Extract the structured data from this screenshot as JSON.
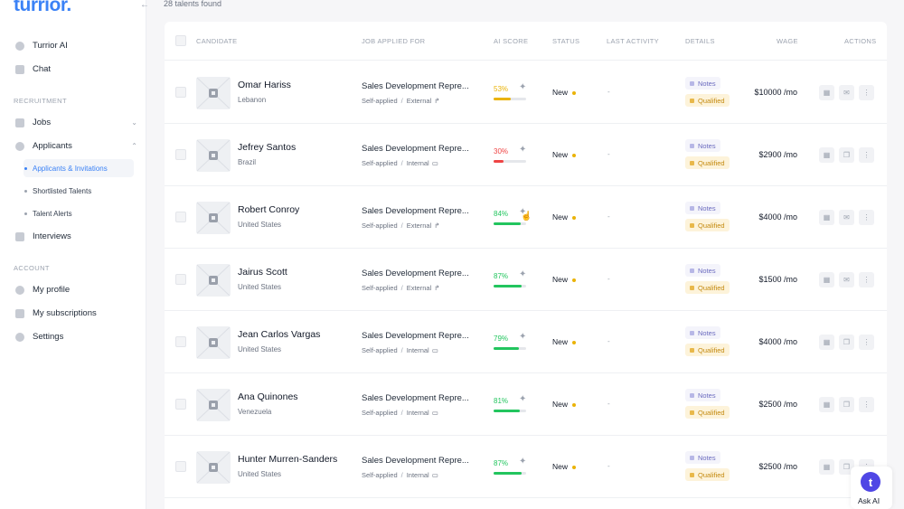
{
  "app": {
    "logo": "turrior."
  },
  "sidebar": {
    "collapse_icon": "arrow-left-icon",
    "top_items": [
      {
        "label": "Turrior AI",
        "icon": "sparkle-icon"
      },
      {
        "label": "Chat",
        "icon": "chat-icon"
      }
    ],
    "recruitment_label": "RECRUITMENT",
    "jobs_label": "Jobs",
    "applicants_label": "Applicants",
    "applicant_subitems": [
      {
        "label": "Applicants & Invitations",
        "active": true
      },
      {
        "label": "Shortlisted Talents",
        "active": false
      },
      {
        "label": "Talent Alerts",
        "active": false
      }
    ],
    "interviews_label": "Interviews",
    "account_label": "ACCOUNT",
    "account_items": [
      {
        "label": "My profile",
        "icon": "user-icon"
      },
      {
        "label": "My subscriptions",
        "icon": "card-icon"
      },
      {
        "label": "Settings",
        "icon": "gear-icon"
      }
    ]
  },
  "main": {
    "count_text": "28 talents found",
    "columns": {
      "candidate": "CANDIDATE",
      "job": "JOB APPLIED FOR",
      "score": "AI SCORE",
      "status": "STATUS",
      "activity": "LAST ACTIVITY",
      "details": "DETAILS",
      "wage": "WAGE",
      "actions": "ACTIONS"
    },
    "rows": [
      {
        "name": "Omar Hariss",
        "country": "Lebanon",
        "job": "Sales Development Repre...",
        "source": "Self-applied",
        "channel": "External",
        "score": "53%",
        "score_value": 53,
        "status": "New",
        "activity": "-",
        "notes": "Notes",
        "qualified": "Qualified",
        "wage": "$10000 /mo"
      },
      {
        "name": "Jefrey Santos",
        "country": "Brazil",
        "job": "Sales Development Repre...",
        "source": "Self-applied",
        "channel": "Internal",
        "score": "30%",
        "score_value": 30,
        "status": "New",
        "activity": "-",
        "notes": "Notes",
        "qualified": "Qualified",
        "wage": "$2900 /mo"
      },
      {
        "name": "Robert Conroy",
        "country": "United States",
        "job": "Sales Development Repre...",
        "source": "Self-applied",
        "channel": "External",
        "score": "84%",
        "score_value": 84,
        "status": "New",
        "activity": "-",
        "notes": "Notes",
        "qualified": "Qualified",
        "wage": "$4000 /mo"
      },
      {
        "name": "Jairus Scott",
        "country": "United States",
        "job": "Sales Development Repre...",
        "source": "Self-applied",
        "channel": "External",
        "score": "87%",
        "score_value": 87,
        "status": "New",
        "activity": "-",
        "notes": "Notes",
        "qualified": "Qualified",
        "wage": "$1500 /mo"
      },
      {
        "name": "Jean Carlos Vargas",
        "country": "United States",
        "job": "Sales Development Repre...",
        "source": "Self-applied",
        "channel": "Internal",
        "score": "79%",
        "score_value": 79,
        "status": "New",
        "activity": "-",
        "notes": "Notes",
        "qualified": "Qualified",
        "wage": "$4000 /mo"
      },
      {
        "name": "Ana Quinones",
        "country": "Venezuela",
        "job": "Sales Development Repre...",
        "source": "Self-applied",
        "channel": "Internal",
        "score": "81%",
        "score_value": 81,
        "status": "New",
        "activity": "-",
        "notes": "Notes",
        "qualified": "Qualified",
        "wage": "$2500 /mo"
      },
      {
        "name": "Hunter Murren-Sanders",
        "country": "United States",
        "job": "Sales Development Repre...",
        "source": "Self-applied",
        "channel": "Internal",
        "score": "87%",
        "score_value": 87,
        "status": "New",
        "activity": "-",
        "notes": "Notes",
        "qualified": "Qualified",
        "wage": "$2500 /mo"
      }
    ]
  },
  "ask_ai": {
    "label": "Ask AI",
    "glyph": "t"
  },
  "colors": {
    "accent": "#3b82f6",
    "score_low": "#ef4444",
    "score_mid": "#eab308",
    "score_high": "#22c55e",
    "status_dot": "#eab308"
  }
}
